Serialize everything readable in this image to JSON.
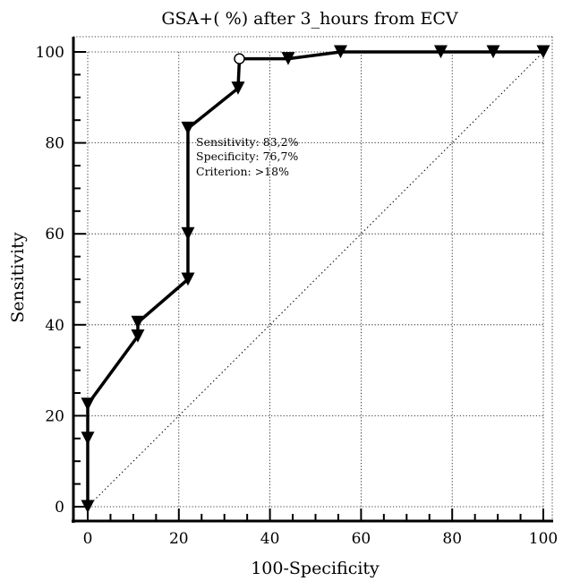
{
  "chart_data": {
    "type": "line",
    "title": "GSA+( %) after 3_hours from ECV",
    "xlabel": "100-Specificity",
    "ylabel": "Sensitivity",
    "xlim": [
      0,
      100
    ],
    "ylim": [
      0,
      100
    ],
    "x_ticks": [
      "0",
      "20",
      "40",
      "60",
      "80",
      "100"
    ],
    "y_ticks": [
      "0",
      "20",
      "40",
      "60",
      "80",
      "100"
    ],
    "grid": true,
    "series": [
      {
        "points": [
          {
            "x": 0,
            "y": 0,
            "marker": "triangle"
          },
          {
            "x": 0,
            "y": 15,
            "marker": "triangle"
          },
          {
            "x": 0,
            "y": 22.5,
            "marker": "triangle"
          },
          {
            "x": 11,
            "y": 37.5,
            "marker": "triangle"
          },
          {
            "x": 11,
            "y": 40.5,
            "marker": "triangle"
          },
          {
            "x": 22,
            "y": 50,
            "marker": "triangle"
          },
          {
            "x": 22,
            "y": 60,
            "marker": "triangle"
          },
          {
            "x": 22,
            "y": 83.2,
            "marker": "triangle"
          },
          {
            "x": 33,
            "y": 92,
            "marker": "triangle"
          },
          {
            "x": 33.3,
            "y": 98.5,
            "marker": "circle"
          },
          {
            "x": 44,
            "y": 98.5,
            "marker": "triangle"
          },
          {
            "x": 55.5,
            "y": 100,
            "marker": "triangle"
          },
          {
            "x": 77.5,
            "y": 100,
            "marker": "triangle"
          },
          {
            "x": 89,
            "y": 100,
            "marker": "triangle"
          },
          {
            "x": 100,
            "y": 100,
            "marker": "triangle"
          }
        ]
      }
    ],
    "reference_line": {
      "from": [
        0,
        0
      ],
      "to": [
        100,
        100
      ],
      "style": "dotted"
    },
    "annotation": {
      "lines": [
        "Sensitivity: 83,2%",
        "Specificity: 76,7%",
        "Criterion: >18%"
      ],
      "anchor": {
        "x": 22,
        "y": 83.2
      }
    }
  }
}
